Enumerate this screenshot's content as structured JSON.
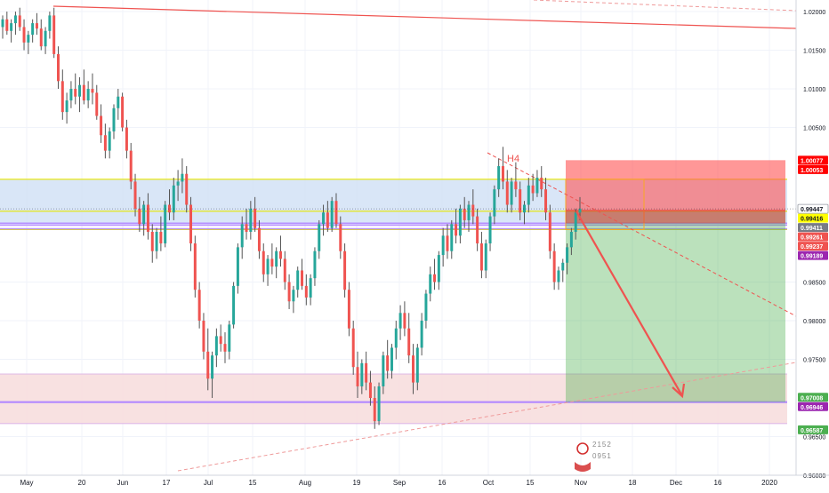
{
  "chart_data": {
    "type": "candlestick",
    "instrument_note": "",
    "x_tick_labels": [
      "May",
      "20",
      "Jun",
      "17",
      "Jul",
      "15",
      "Aug",
      "19",
      "Sep",
      "16",
      "Oct",
      "15",
      "Nov",
      "18",
      "Dec",
      "16",
      "2020"
    ],
    "y_tick_labels": [
      1.02,
      1.015,
      1.01,
      1.005,
      0.985,
      0.98,
      0.975,
      0.965,
      0.96
    ],
    "ylim": [
      0.96,
      1.0215
    ],
    "price_badges": [
      {
        "value": "1.00077",
        "bg": "#ff0000",
        "fg": "#ffffff"
      },
      {
        "value": "1.00053",
        "bg": "#ff0000",
        "fg": "#ffffff"
      },
      {
        "value": "0.99447",
        "bg": "#ffffff",
        "fg": "#131722",
        "border": "#9598a1"
      },
      {
        "value": "0.99416",
        "bg": "#ffff00",
        "fg": "#131722"
      },
      {
        "value": "0.99411",
        "bg": "#787b86",
        "fg": "#ffffff"
      },
      {
        "value": "0.99261",
        "bg": "#ef5350",
        "fg": "#ffffff"
      },
      {
        "value": "0.99237",
        "bg": "#ef5350",
        "fg": "#ffffff"
      },
      {
        "value": "0.99189",
        "bg": "#9c27b0",
        "fg": "#ffffff"
      },
      {
        "value": "0.97008",
        "bg": "#4caf50",
        "fg": "#ffffff"
      },
      {
        "value": "0.96946",
        "bg": "#9c27b0",
        "fg": "#ffffff"
      },
      {
        "value": "0.96587",
        "bg": "#4caf50",
        "fg": "#ffffff"
      }
    ],
    "annotations": [
      {
        "text": "H4",
        "color": "#ef5350"
      }
    ],
    "watermark_numbers": [
      "2152",
      "0951"
    ],
    "zones": {
      "resistance_band": [
        0.9925,
        0.9983
      ],
      "support_band": [
        0.9667,
        0.9731
      ],
      "stop_zone": [
        0.99416,
        1.00077
      ],
      "target_zone": [
        0.96946,
        0.99416
      ]
    },
    "colors": {
      "up": "#26a69a",
      "down": "#ef5350",
      "wick": "#555555",
      "stop": "#ff5252",
      "target": "#4caf50",
      "band_blue": "#cfe0f5",
      "band_pink": "#f7dede",
      "purple_line": "#b388ff",
      "yellow_line": "#e6e600"
    },
    "candles": [
      [
        1.018,
        1.0195,
        1.0165,
        1.019
      ],
      [
        1.019,
        1.02,
        1.017,
        1.0175
      ],
      [
        1.0175,
        1.019,
        1.016,
        1.0185
      ],
      [
        1.0185,
        1.02,
        1.017,
        1.0195
      ],
      [
        1.0195,
        1.0205,
        1.0175,
        1.018
      ],
      [
        1.018,
        1.019,
        1.015,
        1.016
      ],
      [
        1.016,
        1.0175,
        1.0145,
        1.017
      ],
      [
        1.017,
        1.019,
        1.016,
        1.0185
      ],
      [
        1.0185,
        1.0198,
        1.017,
        1.0178
      ],
      [
        1.0178,
        1.019,
        1.015,
        1.0155
      ],
      [
        1.0155,
        1.018,
        1.0145,
        1.0175
      ],
      [
        1.0175,
        1.02,
        1.0165,
        1.0195
      ],
      [
        1.0195,
        1.0205,
        1.014,
        1.0145
      ],
      [
        1.0145,
        1.0155,
        1.01,
        1.011
      ],
      [
        1.011,
        1.0125,
        1.006,
        1.007
      ],
      [
        1.007,
        1.0095,
        1.0055,
        1.0085
      ],
      [
        1.0085,
        1.011,
        1.0075,
        1.01
      ],
      [
        1.01,
        1.012,
        1.008,
        1.009
      ],
      [
        1.009,
        1.0115,
        1.007,
        1.0105
      ],
      [
        1.0105,
        1.0125,
        1.008,
        1.0085
      ],
      [
        1.0085,
        1.011,
        1.0075,
        1.01
      ],
      [
        1.01,
        1.012,
        1.008,
        1.0095
      ],
      [
        1.0095,
        1.0105,
        1.006,
        1.0065
      ],
      [
        1.0065,
        1.008,
        1.003,
        1.004
      ],
      [
        1.004,
        1.0055,
        1.001,
        1.002
      ],
      [
        1.002,
        1.005,
        1.001,
        1.0045
      ],
      [
        1.0045,
        1.008,
        1.0035,
        1.0075
      ],
      [
        1.0075,
        1.01,
        1.006,
        1.009
      ],
      [
        1.009,
        1.0095,
        1.0045,
        1.005
      ],
      [
        1.005,
        1.006,
        1.001,
        1.002
      ],
      [
        1.002,
        1.003,
        0.997,
        0.998
      ],
      [
        0.998,
        0.999,
        0.9935,
        0.9945
      ],
      [
        0.9945,
        0.996,
        0.9915,
        0.9925
      ],
      [
        0.9925,
        0.9955,
        0.991,
        0.995
      ],
      [
        0.995,
        0.9965,
        0.9905,
        0.9915
      ],
      [
        0.9915,
        0.9925,
        0.9875,
        0.989
      ],
      [
        0.989,
        0.992,
        0.988,
        0.9915
      ],
      [
        0.9915,
        0.9935,
        0.989,
        0.99
      ],
      [
        0.99,
        0.9955,
        0.9895,
        0.995
      ],
      [
        0.995,
        0.997,
        0.993,
        0.994
      ],
      [
        0.994,
        0.9985,
        0.993,
        0.9975
      ],
      [
        0.9975,
        0.9995,
        0.9955,
        0.998
      ],
      [
        0.998,
        1.001,
        0.9965,
        0.999
      ],
      [
        0.999,
        1.0,
        0.994,
        0.995
      ],
      [
        0.995,
        0.996,
        0.989,
        0.99
      ],
      [
        0.99,
        0.991,
        0.983,
        0.984
      ],
      [
        0.984,
        0.985,
        0.979,
        0.98
      ],
      [
        0.98,
        0.981,
        0.975,
        0.976
      ],
      [
        0.976,
        0.979,
        0.971,
        0.9725
      ],
      [
        0.9725,
        0.976,
        0.97,
        0.9755
      ],
      [
        0.9755,
        0.979,
        0.974,
        0.978
      ],
      [
        0.978,
        0.9795,
        0.976,
        0.977
      ],
      [
        0.977,
        0.9785,
        0.9745,
        0.976
      ],
      [
        0.976,
        0.98,
        0.975,
        0.9795
      ],
      [
        0.9795,
        0.985,
        0.979,
        0.9845
      ],
      [
        0.9845,
        0.99,
        0.9835,
        0.9895
      ],
      [
        0.9895,
        0.9935,
        0.988,
        0.9925
      ],
      [
        0.9925,
        0.9945,
        0.9905,
        0.9915
      ],
      [
        0.9915,
        0.9955,
        0.9905,
        0.9945
      ],
      [
        0.9945,
        0.996,
        0.9915,
        0.992
      ],
      [
        0.992,
        0.993,
        0.988,
        0.989
      ],
      [
        0.989,
        0.99,
        0.985,
        0.986
      ],
      [
        0.986,
        0.9885,
        0.9845,
        0.988
      ],
      [
        0.988,
        0.99,
        0.986,
        0.987
      ],
      [
        0.987,
        0.9895,
        0.9855,
        0.989
      ],
      [
        0.989,
        0.991,
        0.987,
        0.988
      ],
      [
        0.988,
        0.989,
        0.984,
        0.985
      ],
      [
        0.985,
        0.986,
        0.9815,
        0.9825
      ],
      [
        0.9825,
        0.9845,
        0.981,
        0.984
      ],
      [
        0.984,
        0.987,
        0.983,
        0.9865
      ],
      [
        0.9865,
        0.988,
        0.984,
        0.9845
      ],
      [
        0.9845,
        0.986,
        0.982,
        0.983
      ],
      [
        0.983,
        0.986,
        0.982,
        0.9855
      ],
      [
        0.9855,
        0.9895,
        0.9845,
        0.989
      ],
      [
        0.989,
        0.993,
        0.988,
        0.9925
      ],
      [
        0.9925,
        0.995,
        0.991,
        0.994
      ],
      [
        0.994,
        0.9955,
        0.9915,
        0.992
      ],
      [
        0.992,
        0.996,
        0.9915,
        0.9955
      ],
      [
        0.9955,
        0.9965,
        0.992,
        0.9925
      ],
      [
        0.9925,
        0.9935,
        0.988,
        0.989
      ],
      [
        0.989,
        0.99,
        0.983,
        0.984
      ],
      [
        0.984,
        0.985,
        0.978,
        0.979
      ],
      [
        0.979,
        0.98,
        0.973,
        0.974
      ],
      [
        0.974,
        0.976,
        0.97,
        0.9715
      ],
      [
        0.9715,
        0.975,
        0.9705,
        0.9745
      ],
      [
        0.9745,
        0.976,
        0.971,
        0.972
      ],
      [
        0.972,
        0.9735,
        0.969,
        0.97
      ],
      [
        0.97,
        0.9715,
        0.966,
        0.967
      ],
      [
        0.967,
        0.972,
        0.9665,
        0.9715
      ],
      [
        0.9715,
        0.976,
        0.9705,
        0.9755
      ],
      [
        0.9755,
        0.9775,
        0.9725,
        0.9735
      ],
      [
        0.9735,
        0.977,
        0.9725,
        0.9765
      ],
      [
        0.9765,
        0.98,
        0.975,
        0.979
      ],
      [
        0.979,
        0.982,
        0.9775,
        0.981
      ],
      [
        0.981,
        0.9825,
        0.978,
        0.979
      ],
      [
        0.979,
        0.981,
        0.9745,
        0.9755
      ],
      [
        0.9755,
        0.977,
        0.9705,
        0.972
      ],
      [
        0.972,
        0.977,
        0.971,
        0.9765
      ],
      [
        0.9765,
        0.981,
        0.9755,
        0.98
      ],
      [
        0.98,
        0.984,
        0.979,
        0.9835
      ],
      [
        0.9835,
        0.987,
        0.9825,
        0.986
      ],
      [
        0.986,
        0.988,
        0.984,
        0.985
      ],
      [
        0.985,
        0.989,
        0.984,
        0.9885
      ],
      [
        0.9885,
        0.992,
        0.987,
        0.991
      ],
      [
        0.991,
        0.9925,
        0.988,
        0.989
      ],
      [
        0.989,
        0.993,
        0.988,
        0.9925
      ],
      [
        0.9925,
        0.9945,
        0.99,
        0.991
      ],
      [
        0.991,
        0.995,
        0.99,
        0.9945
      ],
      [
        0.9945,
        0.996,
        0.992,
        0.993
      ],
      [
        0.993,
        0.9955,
        0.9915,
        0.995
      ],
      [
        0.995,
        0.997,
        0.9925,
        0.9935
      ],
      [
        0.9935,
        0.9945,
        0.989,
        0.99
      ],
      [
        0.99,
        0.9915,
        0.9855,
        0.9865
      ],
      [
        0.9865,
        0.9905,
        0.9855,
        0.99
      ],
      [
        0.99,
        0.994,
        0.989,
        0.9935
      ],
      [
        0.9935,
        0.9975,
        0.9925,
        0.997
      ],
      [
        0.997,
        1.001,
        0.996,
        1.0
      ],
      [
        1.0,
        1.0025,
        0.997,
        0.998
      ],
      [
        0.998,
        0.9995,
        0.994,
        0.995
      ],
      [
        0.995,
        0.9985,
        0.994,
        0.998
      ],
      [
        0.998,
        1.0005,
        0.996,
        0.997
      ],
      [
        0.997,
        0.998,
        0.993,
        0.994
      ],
      [
        0.994,
        0.9955,
        0.9925,
        0.995
      ],
      [
        0.995,
        0.9985,
        0.994,
        0.9975
      ],
      [
        0.9975,
        0.999,
        0.9955,
        0.9965
      ],
      [
        0.9965,
        0.9995,
        0.996,
        0.9985
      ],
      [
        0.9985,
        1.0,
        0.996,
        0.997
      ],
      [
        0.997,
        0.9985,
        0.993,
        0.994
      ],
      [
        0.994,
        0.995,
        0.988,
        0.989
      ],
      [
        0.989,
        0.99,
        0.984,
        0.985
      ],
      [
        0.985,
        0.987,
        0.984,
        0.9865
      ],
      [
        0.9865,
        0.988,
        0.985,
        0.9875
      ],
      [
        0.9875,
        0.99,
        0.986,
        0.9895
      ],
      [
        0.9895,
        0.992,
        0.9885,
        0.9915
      ],
      [
        0.9915,
        0.9945,
        0.9905,
        0.994
      ],
      [
        0.994,
        0.996,
        0.993,
        0.9945
      ]
    ]
  }
}
